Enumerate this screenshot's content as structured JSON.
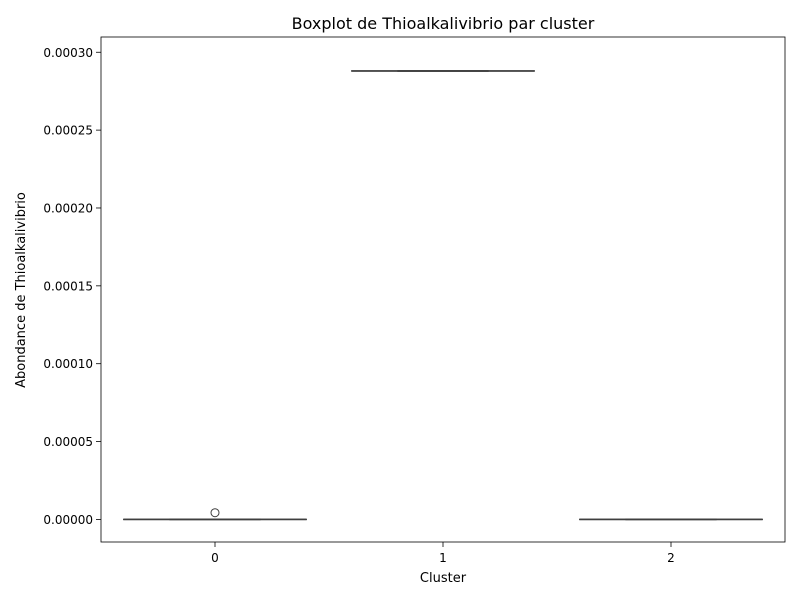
{
  "chart_data": {
    "type": "box",
    "title": "Boxplot de Thioalkalivibrio par cluster",
    "xlabel": "Cluster",
    "ylabel": "Abondance de Thioalkalivibrio",
    "categories": [
      "0",
      "1",
      "2"
    ],
    "ylim": [
      -1.45e-05,
      0.0003098
    ],
    "yticks": [
      0.0,
      5e-05,
      0.0001,
      0.00015,
      0.0002,
      0.00025,
      0.0003
    ],
    "ytick_labels": [
      "0.00000",
      "0.00005",
      "0.00010",
      "0.00015",
      "0.00020",
      "0.00025",
      "0.00030"
    ],
    "boxes": [
      {
        "category": "0",
        "whisker_low": 0.0,
        "q1": 0.0,
        "median": 0.0,
        "q3": 0.0,
        "whisker_high": 0.0,
        "outliers": [
          4.3e-06
        ]
      },
      {
        "category": "1",
        "whisker_low": 0.000288,
        "q1": 0.000288,
        "median": 0.000288,
        "q3": 0.000288,
        "whisker_high": 0.000288,
        "outliers": []
      },
      {
        "category": "2",
        "whisker_low": 0.0,
        "q1": 0.0,
        "median": 0.0,
        "q3": 0.0,
        "whisker_high": 0.0,
        "outliers": []
      }
    ],
    "grid": false,
    "colors": {
      "box_line": "#3f3f3f",
      "axis": "#000000"
    }
  }
}
